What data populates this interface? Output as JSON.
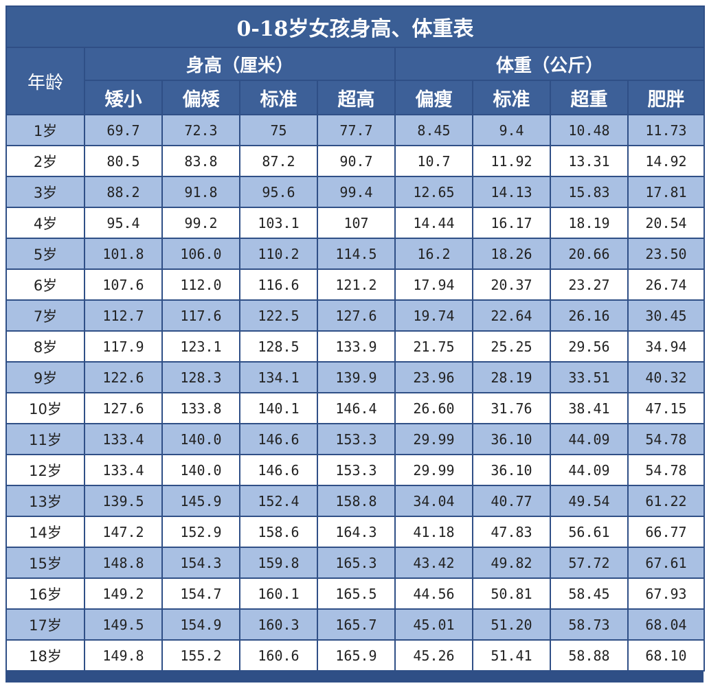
{
  "title": "0-18岁女孩身高、体重表",
  "age_header": "年龄",
  "groups": {
    "height": "身高（厘米）",
    "weight": "体重（公斤）"
  },
  "subheaders": [
    "矮小",
    "偏矮",
    "标准",
    "超高",
    "偏瘦",
    "标准",
    "超重",
    "肥胖"
  ],
  "rows": [
    {
      "age": "1岁",
      "v": [
        "69.7",
        "72.3",
        "75",
        "77.7",
        "8.45",
        "9.4",
        "10.48",
        "11.73"
      ]
    },
    {
      "age": "2岁",
      "v": [
        "80.5",
        "83.8",
        "87.2",
        "90.7",
        "10.7",
        "11.92",
        "13.31",
        "14.92"
      ]
    },
    {
      "age": "3岁",
      "v": [
        "88.2",
        "91.8",
        "95.6",
        "99.4",
        "12.65",
        "14.13",
        "15.83",
        "17.81"
      ]
    },
    {
      "age": "4岁",
      "v": [
        "95.4",
        "99.2",
        "103.1",
        "107",
        "14.44",
        "16.17",
        "18.19",
        "20.54"
      ]
    },
    {
      "age": "5岁",
      "v": [
        "101.8",
        "106.0",
        "110.2",
        "114.5",
        "16.2",
        "18.26",
        "20.66",
        "23.50"
      ]
    },
    {
      "age": "6岁",
      "v": [
        "107.6",
        "112.0",
        "116.6",
        "121.2",
        "17.94",
        "20.37",
        "23.27",
        "26.74"
      ]
    },
    {
      "age": "7岁",
      "v": [
        "112.7",
        "117.6",
        "122.5",
        "127.6",
        "19.74",
        "22.64",
        "26.16",
        "30.45"
      ]
    },
    {
      "age": "8岁",
      "v": [
        "117.9",
        "123.1",
        "128.5",
        "133.9",
        "21.75",
        "25.25",
        "29.56",
        "34.94"
      ]
    },
    {
      "age": "9岁",
      "v": [
        "122.6",
        "128.3",
        "134.1",
        "139.9",
        "23.96",
        "28.19",
        "33.51",
        "40.32"
      ]
    },
    {
      "age": "10岁",
      "v": [
        "127.6",
        "133.8",
        "140.1",
        "146.4",
        "26.60",
        "31.76",
        "38.41",
        "47.15"
      ]
    },
    {
      "age": "11岁",
      "v": [
        "133.4",
        "140.0",
        "146.6",
        "153.3",
        "29.99",
        "36.10",
        "44.09",
        "54.78"
      ]
    },
    {
      "age": "12岁",
      "v": [
        "133.4",
        "140.0",
        "146.6",
        "153.3",
        "29.99",
        "36.10",
        "44.09",
        "54.78"
      ]
    },
    {
      "age": "13岁",
      "v": [
        "139.5",
        "145.9",
        "152.4",
        "158.8",
        "34.04",
        "40.77",
        "49.54",
        "61.22"
      ]
    },
    {
      "age": "14岁",
      "v": [
        "147.2",
        "152.9",
        "158.6",
        "164.3",
        "41.18",
        "47.83",
        "56.61",
        "66.77"
      ]
    },
    {
      "age": "15岁",
      "v": [
        "148.8",
        "154.3",
        "159.8",
        "165.3",
        "43.42",
        "49.82",
        "57.72",
        "67.61"
      ]
    },
    {
      "age": "16岁",
      "v": [
        "149.2",
        "154.7",
        "160.1",
        "165.5",
        "44.56",
        "50.81",
        "58.45",
        "67.93"
      ]
    },
    {
      "age": "17岁",
      "v": [
        "149.5",
        "154.9",
        "160.3",
        "165.7",
        "45.01",
        "51.20",
        "58.73",
        "68.04"
      ]
    },
    {
      "age": "18岁",
      "v": [
        "149.8",
        "155.2",
        "160.6",
        "165.9",
        "45.26",
        "51.41",
        "58.88",
        "68.10"
      ]
    }
  ]
}
